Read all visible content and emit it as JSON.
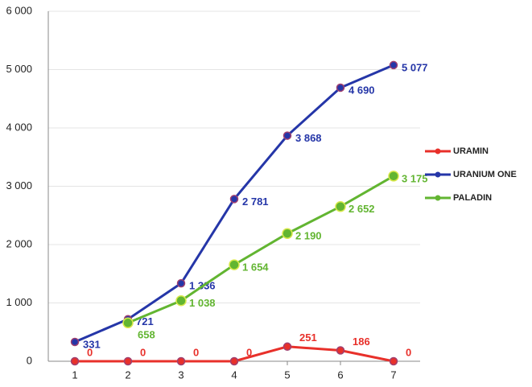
{
  "chart_data": {
    "type": "line",
    "x": [
      1,
      2,
      3,
      4,
      5,
      6,
      7
    ],
    "xlim": [
      0.5,
      7.5
    ],
    "xticks": [
      1,
      2,
      3,
      4,
      5,
      6,
      7
    ],
    "ylim": [
      0,
      6000
    ],
    "yticks": [
      0,
      {
        "value": 1000,
        "label": "1 000"
      },
      {
        "value": 2000,
        "label": "2 000"
      },
      {
        "value": 3000,
        "label": "3 000"
      },
      {
        "value": 4000,
        "label": "4 000"
      },
      {
        "value": 5000,
        "label": "5 000"
      },
      {
        "value": 6000,
        "label": "6 000"
      }
    ],
    "grid": true,
    "legend": "right",
    "series": [
      {
        "name": "URAMIN",
        "color": "#e8302a",
        "values": [
          0,
          0,
          0,
          0,
          251,
          186,
          0
        ]
      },
      {
        "name": "URANIUM ONE",
        "color": "#2536a8",
        "values": [
          331,
          721,
          1336,
          2781,
          3868,
          4690,
          5077
        ],
        "value_labels": [
          "331",
          "721",
          "1 336",
          "2 781",
          "3 868",
          "4 690",
          "5 077"
        ]
      },
      {
        "name": "PALADIN",
        "color": "#62b531",
        "values": [
          null,
          658,
          1038,
          1654,
          2190,
          2652,
          3175
        ],
        "value_labels": [
          null,
          "658",
          "1 038",
          "1 654",
          "2 190",
          "2 652",
          "3 175"
        ]
      }
    ]
  }
}
